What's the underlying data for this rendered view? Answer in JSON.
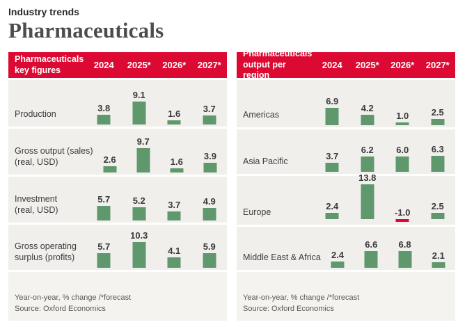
{
  "page": {
    "eyebrow": "Industry trends",
    "title": "Pharmaceuticals"
  },
  "colors": {
    "accent_red": "#dc0a33",
    "bar_green": "#5f986c",
    "bar_negative": "#dc0a33",
    "row_bg": "#f1efec",
    "footer_bg": "#f5f3f0"
  },
  "chart_data": [
    {
      "type": "bar",
      "title": "Pharmaceuticals\nkey figures",
      "columns": [
        "2024",
        "2025*",
        "2026*",
        "2027*"
      ],
      "rows": [
        {
          "label": "Production",
          "values": [
            "3.8",
            "9.1",
            "1.6",
            "3.7"
          ]
        },
        {
          "label": "Gross output (sales)\n(real, USD)",
          "values": [
            "2.6",
            "9.7",
            "1.6",
            "3.9"
          ]
        },
        {
          "label": "Investment\n(real, USD)",
          "values": [
            "5.7",
            "5.2",
            "3.7",
            "4.9"
          ]
        },
        {
          "label": "Gross operating\nsurplus (profits)",
          "values": [
            "5.7",
            "10.3",
            "4.1",
            "5.9"
          ]
        }
      ],
      "note": "Year-on-year, % change /*forecast",
      "source": "Source: Oxford Economics",
      "ylabel": "% change year-on-year",
      "legend": "none",
      "grid": "off"
    },
    {
      "type": "bar",
      "title": "Pharmaceuticals\noutput per region",
      "columns": [
        "2024",
        "2025*",
        "2026*",
        "2027*"
      ],
      "rows": [
        {
          "label": "Americas",
          "values": [
            "6.9",
            "4.2",
            "1.0",
            "2.5"
          ]
        },
        {
          "label": "Asia Pacific",
          "values": [
            "3.7",
            "6.2",
            "6.0",
            "6.3"
          ]
        },
        {
          "label": "Europe",
          "values": [
            "2.4",
            "13.8",
            "-1.0",
            "2.5"
          ]
        },
        {
          "label": "Middle East & Africa",
          "values": [
            "2.4",
            "6.6",
            "6.8",
            "2.1"
          ]
        }
      ],
      "note": "Year-on-year, % change /*forecast",
      "source": "Source: Oxford Economics",
      "ylabel": "% change year-on-year",
      "legend": "none",
      "grid": "off"
    }
  ]
}
